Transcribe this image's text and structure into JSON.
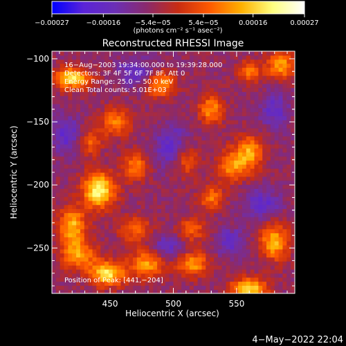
{
  "chart_data": {
    "type": "heatmap",
    "title": "Reconstructed RHESSI Image",
    "xlabel": "Heliocentric X (arcsec)",
    "ylabel": "Heliocentric Y (arcsec)",
    "xlim": [
      404,
      596
    ],
    "ylim": [
      -286,
      -94
    ],
    "x_ticks": [
      450,
      500,
      550
    ],
    "y_ticks": [
      -100,
      -150,
      -200,
      -250
    ],
    "x_tick_labels": [
      "450",
      "500",
      "550"
    ],
    "y_tick_labels": [
      "−100",
      "−150",
      "−200",
      "−250"
    ],
    "colorbar": {
      "range": [
        -0.00027,
        0.00027
      ],
      "ticks": [
        -0.00027,
        -0.00016,
        -5.4e-05,
        5.4e-05,
        0.00016,
        0.00027
      ],
      "tick_labels": [
        "−0.00027",
        "−0.00016",
        "−5.4e−05",
        "5.4e−05",
        "0.00016",
        "0.00027"
      ],
      "units": "(photons cm⁻² s⁻¹ asec⁻²)",
      "colormap": [
        "#0000ff",
        "#5a23d8",
        "#6b2fb5",
        "#8a2a6c",
        "#c82c12",
        "#ff5a00",
        "#ffb000",
        "#ffff80",
        "#ffffff"
      ]
    },
    "annotations": [
      "16−Aug−2003 19:34:00.000 to 19:39:28.000",
      "Detectors: 3F 4F 5F 6F 7F 8F, Att 0",
      "Energy Range: 25.0 − 50.0 keV",
      "Clean    Total counts: 5.01E+03",
      "Position of Peak: [441,−204]"
    ],
    "peak": {
      "x": 441,
      "y": -204
    },
    "hot_spots": [
      {
        "x": 441,
        "y": -204,
        "value": 0.00027,
        "sx": 9,
        "sy": 10
      },
      {
        "x": 420,
        "y": -115,
        "value": 0.00024,
        "sx": 10,
        "sy": 6
      },
      {
        "x": 420,
        "y": -232,
        "value": 0.0002,
        "sx": 8,
        "sy": 10
      },
      {
        "x": 425,
        "y": -255,
        "value": 0.00018,
        "sx": 10,
        "sy": 8
      },
      {
        "x": 448,
        "y": -270,
        "value": 0.00024,
        "sx": 10,
        "sy": 7
      },
      {
        "x": 480,
        "y": -262,
        "value": 0.00019,
        "sx": 10,
        "sy": 8
      },
      {
        "x": 515,
        "y": -262,
        "value": 0.00018,
        "sx": 9,
        "sy": 7
      },
      {
        "x": 560,
        "y": -282,
        "value": 0.00024,
        "sx": 10,
        "sy": 6
      },
      {
        "x": 580,
        "y": -245,
        "value": 0.0002,
        "sx": 8,
        "sy": 10
      },
      {
        "x": 560,
        "y": -175,
        "value": 0.00019,
        "sx": 8,
        "sy": 10
      },
      {
        "x": 545,
        "y": -185,
        "value": 0.00016,
        "sx": 7,
        "sy": 9
      },
      {
        "x": 585,
        "y": -105,
        "value": 0.00018,
        "sx": 8,
        "sy": 8
      },
      {
        "x": 560,
        "y": -110,
        "value": 0.00014,
        "sx": 7,
        "sy": 6
      },
      {
        "x": 455,
        "y": -150,
        "value": 0.00016,
        "sx": 8,
        "sy": 8
      },
      {
        "x": 470,
        "y": -185,
        "value": 0.00015,
        "sx": 7,
        "sy": 8
      },
      {
        "x": 490,
        "y": -120,
        "value": 0.00018,
        "sx": 8,
        "sy": 7
      },
      {
        "x": 510,
        "y": -180,
        "value": 0.00014,
        "sx": 7,
        "sy": 10
      },
      {
        "x": 530,
        "y": -140,
        "value": 0.00017,
        "sx": 7,
        "sy": 8
      },
      {
        "x": 530,
        "y": -210,
        "value": 0.00014,
        "sx": 7,
        "sy": 7
      },
      {
        "x": 470,
        "y": -235,
        "value": 0.00013,
        "sx": 9,
        "sy": 7
      },
      {
        "x": 515,
        "y": -235,
        "value": 0.00012,
        "sx": 8,
        "sy": 7
      },
      {
        "x": 435,
        "y": -165,
        "value": 0.00012,
        "sx": 6,
        "sy": 8
      }
    ],
    "cold_spots": [
      {
        "x": 500,
        "y": -170,
        "value": -0.00012,
        "sx": 10,
        "sy": 12
      },
      {
        "x": 495,
        "y": -250,
        "value": -0.0001,
        "sx": 10,
        "sy": 8
      },
      {
        "x": 415,
        "y": -160,
        "value": -0.00011,
        "sx": 8,
        "sy": 10
      },
      {
        "x": 570,
        "y": -215,
        "value": -0.00011,
        "sx": 10,
        "sy": 8
      },
      {
        "x": 545,
        "y": -245,
        "value": -0.0001,
        "sx": 8,
        "sy": 8
      },
      {
        "x": 470,
        "y": -110,
        "value": -0.0001,
        "sx": 10,
        "sy": 8
      },
      {
        "x": 580,
        "y": -140,
        "value": -0.0001,
        "sx": 8,
        "sy": 10
      }
    ]
  },
  "footer": {
    "date": "4−May−2022 22:04"
  }
}
